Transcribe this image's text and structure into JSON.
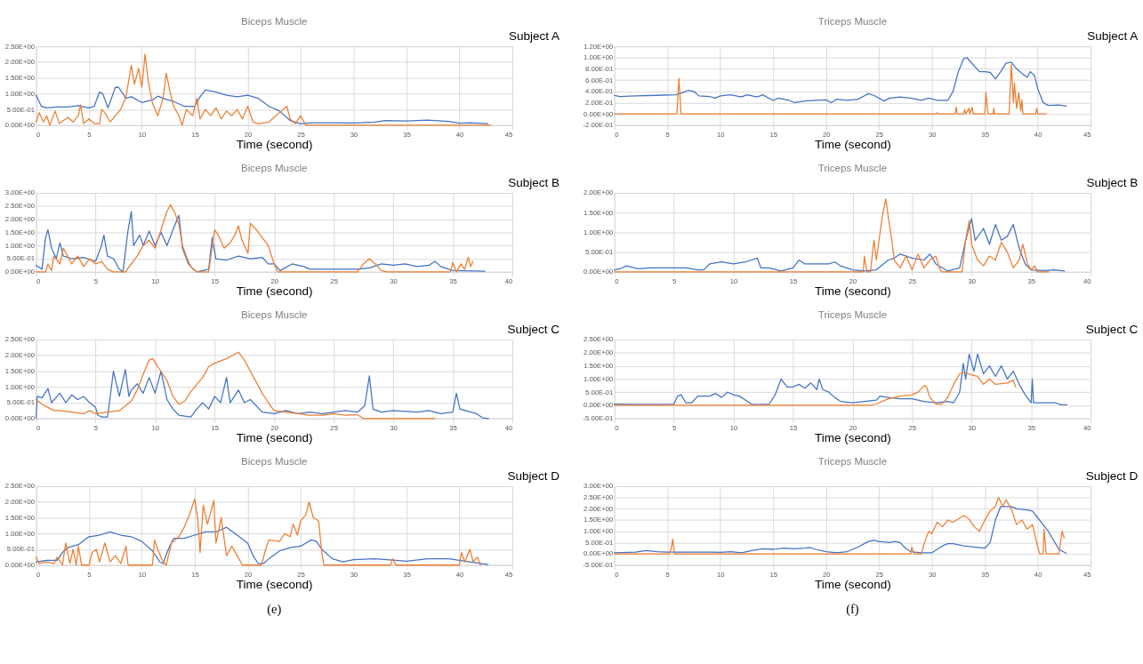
{
  "chart_data": [
    {
      "type": "line",
      "title": "Biceps Muscle",
      "xlabel": "Time (second)",
      "annotations": [
        "Subject A"
      ],
      "grid": true,
      "legend": false,
      "xlim": [
        0,
        45
      ],
      "xticks": [
        0,
        5,
        10,
        15,
        20,
        25,
        30,
        35,
        40,
        45
      ],
      "ylim": [
        0,
        2.5
      ],
      "yticks": [
        {
          "value": 0,
          "label": "0.00E+00"
        },
        {
          "value": 0.5,
          "label": "5.00E-01"
        },
        {
          "value": 1,
          "label": "1.00E+00"
        },
        {
          "value": 1.5,
          "label": "1.50E+00"
        },
        {
          "value": 2,
          "label": "2.00E+00"
        },
        {
          "value": 2.5,
          "label": "2.50E+00"
        }
      ],
      "series": [
        {
          "color": "#4472c4",
          "x": [
            0,
            0.5,
            1,
            2,
            3,
            4,
            5,
            5.5,
            6,
            6.3,
            6.8,
            7.5,
            7.8,
            8.5,
            9,
            10,
            11,
            11.5,
            12,
            13,
            14,
            15,
            15.5,
            16,
            17,
            18,
            19,
            20,
            21,
            22,
            23,
            24,
            25,
            26,
            28,
            30,
            32,
            33,
            35,
            37,
            39,
            40,
            41,
            42.7
          ],
          "values": [
            0.95,
            0.6,
            0.55,
            0.58,
            0.58,
            0.62,
            0.55,
            0.6,
            1.05,
            1.0,
            0.55,
            1.2,
            1.2,
            0.85,
            0.9,
            0.72,
            0.8,
            0.92,
            0.85,
            0.75,
            0.6,
            0.6,
            0.9,
            1.12,
            1.05,
            0.95,
            0.9,
            0.95,
            0.85,
            0.6,
            0.45,
            0.15,
            0.05,
            0.08,
            0.08,
            0.07,
            0.1,
            0.15,
            0.13,
            0.16,
            0.12,
            0.06,
            0.08,
            0.05
          ]
        },
        {
          "color": "#ed7d31",
          "x": [
            0,
            0.3,
            0.7,
            1,
            1.3,
            1.8,
            2.2,
            3,
            3.5,
            4,
            4.2,
            4.5,
            5,
            5.5,
            6,
            6.2,
            6.5,
            7,
            7.5,
            8,
            8.5,
            9,
            9.3,
            9.7,
            10,
            10.3,
            10.6,
            11,
            11.5,
            12,
            12.3,
            12.7,
            13,
            13.5,
            13.8,
            14.2,
            14.8,
            15.2,
            15.5,
            16,
            16.5,
            17,
            17.5,
            18,
            18.5,
            19,
            19.5,
            20,
            20.5,
            21,
            22,
            23,
            23.7,
            24,
            24.5,
            25,
            25.5,
            30,
            43
          ],
          "values": [
            0.1,
            0.4,
            0.1,
            0.3,
            0,
            0.45,
            0.05,
            0.25,
            0.1,
            0.3,
            0.65,
            0.05,
            0.2,
            0.05,
            0.05,
            0.5,
            0.4,
            0.1,
            0.3,
            0.5,
            0.9,
            1.9,
            1.3,
            1.8,
            1.2,
            2.25,
            1.4,
            0.7,
            0.3,
            0.85,
            1.65,
            1.0,
            0.6,
            0.3,
            0,
            0.5,
            0.3,
            0.85,
            0.2,
            0.5,
            0.3,
            0.55,
            0.2,
            0.45,
            0.3,
            0.5,
            0.2,
            0.6,
            0.1,
            0.05,
            0.1,
            0.4,
            0.6,
            0.2,
            0.05,
            0.3,
            0,
            0,
            0
          ]
        }
      ]
    },
    {
      "type": "line",
      "title": "Biceps Muscle",
      "xlabel": "Time (second)",
      "annotations": [
        "Subject B"
      ],
      "grid": true,
      "legend": false,
      "xlim": [
        0,
        40
      ],
      "xticks": [
        0,
        5,
        10,
        15,
        20,
        25,
        30,
        35,
        40
      ],
      "ylim": [
        0,
        3
      ],
      "yticks": [
        {
          "value": 0,
          "label": "0.00E+00"
        },
        {
          "value": 0.5,
          "label": "5.00E-01"
        },
        {
          "value": 1,
          "label": "1.00E+00"
        },
        {
          "value": 1.5,
          "label": "1.50E+00"
        },
        {
          "value": 2,
          "label": "2.00E+00"
        },
        {
          "value": 2.5,
          "label": "2.50E+00"
        },
        {
          "value": 3,
          "label": "3.00E+00"
        }
      ],
      "series": [
        {
          "color": "#4472c4",
          "x": [
            0,
            0.5,
            0.8,
            1,
            1.3,
            1.7,
            2,
            2.3,
            3,
            4,
            5,
            5.5,
            5.7,
            6,
            6.5,
            7,
            7.3,
            7.7,
            8,
            8.2,
            8.7,
            9,
            9.5,
            10,
            10.5,
            11,
            11.5,
            12,
            12.3,
            12.8,
            13.2,
            13.5,
            14.5,
            14.8,
            15.1,
            16,
            17,
            18,
            19,
            19.5,
            20,
            20.5,
            21.5,
            22.5,
            23,
            25,
            27,
            28,
            29,
            30,
            31,
            32,
            33,
            33.5,
            34,
            35,
            37.7
          ],
          "values": [
            0.25,
            0.1,
            1.3,
            1.6,
            0.9,
            0.5,
            1.1,
            0.6,
            0.5,
            0.55,
            0.4,
            1.0,
            1.4,
            0.6,
            0.5,
            0.1,
            0,
            1.5,
            2.3,
            1.0,
            1.4,
            1.0,
            1.55,
            1.0,
            1.5,
            1.0,
            1.6,
            2.15,
            0.9,
            0.3,
            0.1,
            0,
            0.1,
            1.3,
            0.5,
            0.45,
            0.6,
            0.5,
            0.55,
            0.3,
            0.3,
            0.05,
            0.3,
            0.2,
            0.1,
            0.1,
            0.1,
            0.15,
            0.3,
            0.25,
            0.3,
            0.2,
            0.25,
            0.4,
            0.2,
            0.05,
            0.02
          ]
        },
        {
          "color": "#ed7d31",
          "x": [
            0,
            0.8,
            1,
            1.3,
            1.5,
            2,
            2.3,
            3,
            3.5,
            4,
            4.5,
            5,
            5.5,
            6,
            6.5,
            7.5,
            8,
            8.5,
            9,
            9.5,
            10,
            10.5,
            11,
            11.3,
            11.7,
            12,
            12.3,
            12.7,
            13,
            13.5,
            14.5,
            15,
            15.3,
            15.8,
            16.3,
            16.7,
            17,
            17.3,
            17.8,
            18,
            18.5,
            19,
            19.5,
            20,
            20.3,
            27,
            27.5,
            28,
            28.5,
            29,
            29.5,
            34.8,
            35,
            35.3,
            35.7,
            36,
            36.3,
            36.5,
            36.7
          ],
          "values": [
            0,
            0,
            0.3,
            0.05,
            0.6,
            0.3,
            0.9,
            0.3,
            0.6,
            0.2,
            0.5,
            0.3,
            0.4,
            0.1,
            0,
            0,
            0.3,
            0.6,
            1.0,
            1.2,
            0.9,
            1.6,
            2.3,
            2.55,
            2.2,
            1.8,
            1.0,
            0.5,
            0.2,
            0,
            0,
            1.6,
            1.4,
            0.9,
            1.1,
            1.4,
            1.75,
            1.2,
            0.7,
            1.85,
            1.6,
            1.3,
            1.0,
            0.3,
            0,
            0,
            0.3,
            0.5,
            0.3,
            0.05,
            0,
            0,
            0.35,
            0,
            0.3,
            0.1,
            0.55,
            0.2,
            0.4
          ]
        }
      ]
    },
    {
      "type": "line",
      "title": "Biceps Muscle",
      "xlabel": "Time (second)",
      "annotations": [
        "Subject C"
      ],
      "grid": true,
      "legend": false,
      "xlim": [
        0,
        40
      ],
      "xticks": [
        0,
        5,
        10,
        15,
        20,
        25,
        30,
        35,
        40
      ],
      "ylim": [
        0,
        2.5
      ],
      "yticks": [
        {
          "value": 0,
          "label": "0.00E+00"
        },
        {
          "value": 0.5,
          "label": "5.00E-01"
        },
        {
          "value": 1,
          "label": "1.00E+00"
        },
        {
          "value": 1.5,
          "label": "1.50E+00"
        },
        {
          "value": 2,
          "label": "2.00E+00"
        },
        {
          "value": 2.5,
          "label": "2.50E+00"
        }
      ],
      "series": [
        {
          "color": "#4472c4",
          "x": [
            0,
            0.1,
            0.5,
            1,
            1.3,
            2,
            2.5,
            3,
            3.5,
            4,
            4.5,
            5,
            5.2,
            5.5,
            6,
            6.2,
            6.5,
            7,
            7.5,
            7.8,
            8,
            8.5,
            9,
            9.5,
            10,
            10.5,
            11,
            11.5,
            12,
            13,
            13.5,
            14,
            14.5,
            15,
            15.5,
            16,
            16.3,
            17,
            17.5,
            18,
            19,
            20,
            21,
            22,
            23,
            24,
            25,
            26,
            27,
            27.6,
            28,
            28.3,
            29,
            30,
            32,
            33,
            34,
            35,
            35.3,
            35.6,
            37,
            37.5,
            38
          ],
          "values": [
            0,
            0.7,
            0.65,
            0.95,
            0.5,
            0.8,
            0.5,
            0.75,
            0.6,
            0.7,
            0.5,
            0.35,
            0.1,
            0.05,
            0.05,
            0.6,
            1.5,
            0.7,
            1.55,
            0.7,
            0.9,
            1.1,
            0.8,
            1.3,
            0.8,
            1.5,
            0.6,
            0.3,
            0.1,
            0.05,
            0.3,
            0.5,
            0.3,
            0.7,
            0.5,
            1.3,
            0.5,
            0.9,
            0.5,
            0.6,
            0.2,
            0.15,
            0.25,
            0.15,
            0.2,
            0.15,
            0.2,
            0.25,
            0.2,
            0.4,
            1.35,
            0.3,
            0.2,
            0.25,
            0.2,
            0.25,
            0.15,
            0.2,
            0.8,
            0.3,
            0.15,
            0.02,
            0
          ]
        },
        {
          "color": "#ed7d31",
          "x": [
            0,
            0.5,
            1,
            1.5,
            2,
            3,
            4,
            4.5,
            5,
            6,
            7,
            8,
            8.5,
            9,
            9.5,
            9.8,
            10.3,
            11,
            11.5,
            12,
            12.5,
            13,
            14,
            14.5,
            15,
            16,
            16.5,
            17,
            17.5,
            18,
            19,
            19.5,
            20,
            21,
            22,
            23,
            24,
            25,
            26,
            27,
            27.5,
            33.5
          ],
          "values": [
            0.6,
            0.45,
            0.35,
            0.25,
            0.25,
            0.2,
            0.15,
            0.25,
            0.15,
            0.2,
            0.25,
            0.55,
            0.9,
            1.4,
            1.85,
            1.9,
            1.6,
            1.2,
            0.7,
            0.45,
            0.55,
            0.85,
            1.3,
            1.65,
            1.75,
            1.9,
            2.0,
            2.1,
            1.85,
            1.5,
            0.8,
            0.5,
            0.25,
            0.2,
            0.15,
            0.1,
            0.1,
            0.15,
            0.1,
            0.12,
            0,
            0
          ]
        }
      ]
    },
    {
      "type": "line",
      "title": "Biceps Muscle",
      "xlabel": "Time (second)",
      "annotations": [
        "Subject D",
        "(e)"
      ],
      "grid": true,
      "legend": false,
      "xlim": [
        0,
        45
      ],
      "xticks": [
        0,
        5,
        10,
        15,
        20,
        25,
        30,
        35,
        40,
        45
      ],
      "ylim": [
        0,
        2.5
      ],
      "yticks": [
        {
          "value": 0,
          "label": "0.00E+00"
        },
        {
          "value": 0.5,
          "label": "5.00E-01"
        },
        {
          "value": 1,
          "label": "1.00E+00"
        },
        {
          "value": 1.5,
          "label": "1.50E+00"
        },
        {
          "value": 2,
          "label": "2.00E+00"
        },
        {
          "value": 2.5,
          "label": "2.50E+00"
        }
      ],
      "series": [
        {
          "color": "#4472c4",
          "x": [
            0,
            1,
            2,
            2.5,
            3,
            4,
            5,
            6,
            7,
            8,
            9,
            10,
            11,
            11.7,
            12,
            12.5,
            13,
            14,
            15,
            16,
            17,
            18,
            19,
            20,
            20.5,
            21,
            21.5,
            22,
            23,
            24,
            25,
            26,
            26.5,
            27,
            28,
            29,
            30,
            32,
            34,
            35,
            37,
            39,
            40,
            41,
            42.7
          ],
          "values": [
            0.1,
            0.15,
            0.15,
            0.4,
            0.55,
            0.65,
            0.9,
            0.95,
            1.05,
            0.95,
            0.9,
            0.75,
            0.45,
            0.1,
            0.05,
            0.5,
            0.85,
            0.85,
            0.95,
            1.05,
            1.05,
            1.2,
            0.95,
            0.7,
            0.3,
            0.05,
            0.05,
            0.2,
            0.45,
            0.55,
            0.6,
            0.8,
            0.75,
            0.5,
            0.2,
            0.1,
            0.17,
            0.2,
            0.15,
            0.12,
            0.2,
            0.2,
            0.15,
            0.1,
            0.02
          ]
        },
        {
          "color": "#ed7d31",
          "x": [
            0,
            0.3,
            1,
            1.7,
            2,
            2.5,
            2.8,
            3.2,
            3.5,
            3.8,
            4,
            4.3,
            5,
            5.3,
            5.7,
            6,
            6.5,
            7,
            7.5,
            8,
            8.5,
            8.7,
            11,
            11.2,
            11.5,
            12,
            12.3,
            12.8,
            13.5,
            14,
            14.5,
            15,
            15.3,
            15.5,
            15.8,
            16.2,
            16.8,
            17,
            17.5,
            18,
            18.5,
            19,
            19.5,
            21.3,
            21.7,
            22,
            23,
            23.5,
            24,
            24.3,
            24.7,
            25,
            25.5,
            25.8,
            26.2,
            26.7,
            27,
            27.2,
            33.5,
            33.7,
            34,
            40,
            40.2,
            40.5,
            41,
            41.3,
            41.7,
            42
          ],
          "values": [
            0.25,
            0.05,
            0.1,
            0.05,
            0.25,
            0,
            0.7,
            0.05,
            0.5,
            0,
            0.6,
            0,
            0,
            0.4,
            0.5,
            0.1,
            0.7,
            0.1,
            0.3,
            0.05,
            0.6,
            0,
            0,
            0.8,
            0.5,
            0.1,
            0,
            0.7,
            0.9,
            1.2,
            1.6,
            2.1,
            1.4,
            0.4,
            1.9,
            1.3,
            2.05,
            0.7,
            1.5,
            0.3,
            0.6,
            0.3,
            0,
            0,
            0.5,
            0.8,
            0.75,
            1.0,
            0.9,
            1.3,
            0.95,
            1.4,
            1.6,
            2.0,
            1.5,
            1.4,
            0.4,
            0,
            0,
            0.2,
            0,
            0,
            0.4,
            0.1,
            0.5,
            0.1,
            0.25,
            0
          ]
        }
      ]
    },
    {
      "type": "line",
      "title": "Triceps Muscle",
      "xlabel": "Time (second)",
      "annotations": [
        "Subject A"
      ],
      "grid": true,
      "legend": false,
      "xlim": [
        0,
        45
      ],
      "xticks": [
        0,
        5,
        10,
        15,
        20,
        25,
        30,
        35,
        40,
        45
      ],
      "ylim": [
        -0.2,
        1.2
      ],
      "yticks": [
        {
          "value": -0.2,
          "label": "-2.00E-01"
        },
        {
          "value": 0,
          "label": "0.00E+00"
        },
        {
          "value": 0.2,
          "label": "2.00E-01"
        },
        {
          "value": 0.4,
          "label": "4.00E-01"
        },
        {
          "value": 0.6,
          "label": "6.00E-01"
        },
        {
          "value": 0.8,
          "label": "8.00E-01"
        },
        {
          "value": 1,
          "label": "1.00E+00"
        },
        {
          "value": 1.2,
          "label": "1.20E+00"
        }
      ],
      "series": [
        {
          "color": "#4472c4",
          "x": [
            0,
            0.5,
            2,
            4,
            5.8,
            6.5,
            7,
            7.5,
            8,
            9,
            9.5,
            10,
            11,
            12,
            12.5,
            13.5,
            14,
            15,
            15.5,
            16.5,
            17,
            18,
            19,
            20,
            20.5,
            21,
            22,
            23,
            24,
            24.5,
            25.5,
            26,
            27,
            28,
            29,
            29.7,
            30.5,
            31.5,
            32,
            32.5,
            33,
            33.3,
            34,
            34.5,
            35,
            35.5,
            36,
            36.5,
            37,
            37.5,
            38,
            38.5,
            39,
            39.3,
            39.7,
            40,
            40.5,
            41,
            42,
            42.7
          ],
          "values": [
            0.33,
            0.31,
            0.32,
            0.33,
            0.34,
            0.38,
            0.42,
            0.4,
            0.32,
            0.31,
            0.28,
            0.32,
            0.34,
            0.3,
            0.34,
            0.3,
            0.34,
            0.24,
            0.28,
            0.24,
            0.2,
            0.23,
            0.24,
            0.25,
            0.2,
            0.26,
            0.24,
            0.26,
            0.36,
            0.33,
            0.23,
            0.28,
            0.3,
            0.28,
            0.24,
            0.28,
            0.24,
            0.24,
            0.4,
            0.75,
            0.98,
            1.0,
            0.85,
            0.75,
            0.75,
            0.74,
            0.62,
            0.75,
            0.9,
            0.92,
            0.8,
            0.72,
            0.65,
            0.75,
            0.68,
            0.45,
            0.2,
            0.15,
            0.16,
            0.14
          ]
        },
        {
          "color": "#ed7d31",
          "x": [
            0,
            5.9,
            6.1,
            6.3,
            30.4,
            30.5,
            30.6,
            32.2,
            32.3,
            32.4,
            33,
            33.1,
            33.2,
            33.5,
            33.6,
            33.8,
            33.9,
            35,
            35.1,
            35.3,
            35.8,
            35.85,
            35.9,
            37.3,
            37.5,
            37.7,
            37.8,
            38,
            38.2,
            38.4,
            38.5,
            38.6,
            39.8,
            39.9,
            40,
            40.8
          ],
          "values": [
            0,
            0,
            0.63,
            0,
            0,
            0.02,
            0,
            0,
            0.12,
            0,
            0,
            0.08,
            0,
            0.1,
            0,
            0.12,
            0,
            0,
            0.38,
            0,
            0,
            0.1,
            0,
            0,
            0.88,
            0.2,
            0.55,
            0.1,
            0.38,
            0.05,
            0.25,
            0,
            0,
            0.1,
            0,
            0
          ]
        }
      ]
    },
    {
      "type": "line",
      "title": "Triceps Muscle",
      "xlabel": "Time (second)",
      "annotations": [
        "Subject B"
      ],
      "grid": true,
      "legend": false,
      "xlim": [
        0,
        40
      ],
      "xticks": [
        0,
        5,
        10,
        15,
        20,
        25,
        30,
        35,
        40
      ],
      "ylim": [
        0,
        2
      ],
      "yticks": [
        {
          "value": 0,
          "label": "0.00E+00"
        },
        {
          "value": 0.5,
          "label": "5.00E-01"
        },
        {
          "value": 1,
          "label": "1.00E+00"
        },
        {
          "value": 1.5,
          "label": "1.50E+00"
        },
        {
          "value": 2,
          "label": "2.00E+00"
        }
      ],
      "series": [
        {
          "color": "#4472c4",
          "x": [
            0,
            0.5,
            1,
            2,
            3,
            5,
            6,
            7,
            7.5,
            8,
            9,
            10,
            11,
            12,
            12.3,
            13,
            14,
            15,
            15.5,
            16,
            17,
            18,
            18.5,
            19,
            20,
            21,
            22,
            23,
            23.5,
            24,
            25,
            26,
            26.5,
            27,
            28,
            29,
            29.5,
            30,
            30.3,
            31,
            31.5,
            32,
            32.5,
            33,
            33.5,
            34,
            34.5,
            35,
            36,
            37,
            37.8
          ],
          "values": [
            0.05,
            0.08,
            0.15,
            0.08,
            0.1,
            0.1,
            0.1,
            0.05,
            0.05,
            0.2,
            0.25,
            0.2,
            0.25,
            0.35,
            0.1,
            0.1,
            0.02,
            0.1,
            0.3,
            0.2,
            0.2,
            0.2,
            0.25,
            0.15,
            0.05,
            0.02,
            0.05,
            0.3,
            0.35,
            0.45,
            0.35,
            0.3,
            0.45,
            0.2,
            0.02,
            0.1,
            0.8,
            1.35,
            0.8,
            1.1,
            0.7,
            1.2,
            0.8,
            0.9,
            1.2,
            0.6,
            0.2,
            0.05,
            0.03,
            0.05,
            0.02
          ]
        },
        {
          "color": "#ed7d31",
          "x": [
            0,
            20.9,
            21,
            21.2,
            21.5,
            21.8,
            22,
            22.5,
            22.8,
            23,
            23.3,
            23.5,
            24,
            24.5,
            25,
            25.5,
            26,
            26.5,
            27,
            27.3,
            27.5,
            29.2,
            29.5,
            29.8,
            30,
            30.5,
            31,
            31.5,
            32,
            32.5,
            33,
            33.5,
            34,
            34.3,
            34.7,
            35,
            35.3,
            35.5,
            36.5
          ],
          "values": [
            0,
            0,
            0.4,
            0,
            0,
            0.8,
            0.3,
            1.4,
            1.85,
            1.4,
            0.8,
            0.3,
            0.1,
            0.4,
            0.05,
            0.45,
            0.1,
            0.3,
            0.4,
            0.1,
            0,
            0,
            0.8,
            1.3,
            0.7,
            0.3,
            0.15,
            0.4,
            0.3,
            0.75,
            0.5,
            0.1,
            0.3,
            0.7,
            0.2,
            0.05,
            0.15,
            0,
            0
          ]
        }
      ]
    },
    {
      "type": "line",
      "title": "Triceps Muscle",
      "xlabel": "Time (second)",
      "annotations": [
        "Subject C"
      ],
      "grid": true,
      "legend": false,
      "xlim": [
        0,
        40
      ],
      "xticks": [
        0,
        5,
        10,
        15,
        20,
        25,
        30,
        35,
        40
      ],
      "ylim": [
        -0.5,
        2.5
      ],
      "yticks": [
        {
          "value": -0.5,
          "label": "-5.00E-01"
        },
        {
          "value": 0,
          "label": "0.00E+00"
        },
        {
          "value": 0.5,
          "label": "5.00E-01"
        },
        {
          "value": 1,
          "label": "1.00E+00"
        },
        {
          "value": 1.5,
          "label": "1.50E+00"
        },
        {
          "value": 2,
          "label": "2.00E+00"
        },
        {
          "value": 2.5,
          "label": "2.50E+00"
        }
      ],
      "series": [
        {
          "color": "#4472c4",
          "x": [
            0,
            2,
            5,
            5.3,
            5.6,
            6,
            6.5,
            7,
            8,
            8.5,
            9,
            9.5,
            10,
            10.5,
            11,
            11.5,
            12,
            13,
            13.5,
            14,
            14.5,
            15,
            15.5,
            16,
            16.5,
            17,
            17.2,
            17.5,
            18,
            18.5,
            19,
            20,
            21,
            22,
            22.3,
            23,
            24,
            25,
            26,
            27,
            28,
            28.5,
            29,
            29.3,
            29.5,
            29.8,
            30.2,
            30.5,
            31,
            31.5,
            32,
            32.5,
            33,
            33.5,
            34,
            34.5,
            35,
            35.1,
            35.2,
            36,
            37,
            37.5,
            38
          ],
          "values": [
            0.05,
            0.04,
            0.05,
            0.35,
            0.4,
            0.1,
            0.1,
            0.35,
            0.35,
            0.45,
            0.3,
            0.5,
            0.4,
            0.35,
            0.2,
            0.05,
            0.03,
            0.05,
            0.4,
            1.0,
            0.7,
            0.7,
            0.8,
            0.65,
            0.85,
            0.6,
            1.0,
            0.6,
            0.5,
            0.3,
            0.15,
            0.1,
            0.15,
            0.2,
            0.35,
            0.3,
            0.25,
            0.25,
            0.15,
            0.1,
            0.15,
            0.1,
            0.5,
            1.6,
            1.0,
            1.95,
            1.3,
            1.95,
            1.2,
            1.5,
            1.1,
            1.5,
            1.0,
            1.3,
            0.8,
            0.4,
            0.1,
            1.0,
            0.1,
            0.1,
            0.1,
            0.02,
            0.02
          ]
        },
        {
          "color": "#ed7d31",
          "x": [
            0,
            21.5,
            22,
            23,
            24,
            25,
            25.5,
            26,
            26.2,
            26.5,
            27,
            27.5,
            28,
            28.5,
            29,
            29.5,
            30,
            30.5,
            31,
            31.5,
            32,
            33,
            33.5,
            33.7
          ],
          "values": [
            0,
            0,
            0.05,
            0.25,
            0.35,
            0.4,
            0.5,
            0.75,
            0.72,
            0.3,
            0.05,
            0.05,
            0.3,
            0.8,
            1.2,
            1.25,
            1.15,
            1.1,
            0.8,
            1.0,
            0.8,
            0.85,
            0.95,
            0.7
          ]
        }
      ]
    },
    {
      "type": "line",
      "title": "Triceps Muscle",
      "xlabel": "Time (second)",
      "annotations": [
        "Subject D",
        "(f)"
      ],
      "grid": true,
      "legend": false,
      "xlim": [
        0,
        45
      ],
      "xticks": [
        0,
        5,
        10,
        15,
        20,
        25,
        30,
        35,
        40,
        45
      ],
      "ylim": [
        -0.5,
        3
      ],
      "yticks": [
        {
          "value": -0.5,
          "label": "-5.00E-01"
        },
        {
          "value": 0,
          "label": "0.00E+00"
        },
        {
          "value": 0.5,
          "label": "5.00E-01"
        },
        {
          "value": 1,
          "label": "1.00E+00"
        },
        {
          "value": 1.5,
          "label": "1.50E+00"
        },
        {
          "value": 2,
          "label": "2.00E+00"
        },
        {
          "value": 2.5,
          "label": "2.50E+00"
        },
        {
          "value": 3,
          "label": "3.00E+00"
        }
      ],
      "series": [
        {
          "color": "#4472c4",
          "x": [
            0,
            2,
            3,
            4,
            5,
            7,
            9,
            10,
            11,
            12,
            13,
            14,
            15,
            16,
            17,
            18,
            18.5,
            19,
            20,
            21,
            22,
            23,
            24,
            24.5,
            25,
            26,
            26.5,
            27,
            27.5,
            28,
            29,
            30,
            31,
            31.5,
            32,
            33,
            34,
            35,
            35.5,
            36,
            36.5,
            37,
            37.5,
            38,
            39,
            39.5,
            40,
            40.5,
            41,
            41.5,
            42,
            42.7
          ],
          "values": [
            0.05,
            0.08,
            0.15,
            0.1,
            0.08,
            0.08,
            0.08,
            0.07,
            0.1,
            0.05,
            0.15,
            0.22,
            0.2,
            0.25,
            0.22,
            0.25,
            0.28,
            0.2,
            0.1,
            0.05,
            0.1,
            0.3,
            0.55,
            0.6,
            0.55,
            0.5,
            0.55,
            0.5,
            0.25,
            0.1,
            0.05,
            0.05,
            0.35,
            0.45,
            0.45,
            0.35,
            0.3,
            0.25,
            0.5,
            1.5,
            2.1,
            2.1,
            2.1,
            2.0,
            1.95,
            1.9,
            1.6,
            1.3,
            1.0,
            0.6,
            0.2,
            0.02
          ]
        },
        {
          "color": "#ed7d31",
          "x": [
            0,
            5.2,
            5.4,
            5.5,
            5.7,
            28,
            28.1,
            28.3,
            29,
            29.3,
            29.7,
            30,
            30.5,
            31,
            31.5,
            32,
            33,
            33.5,
            34,
            34.5,
            35,
            35.5,
            36,
            36.3,
            36.7,
            37,
            37.5,
            38,
            38.5,
            39,
            39.5,
            40,
            40.2,
            40.5,
            40.6,
            40.8,
            42,
            42.3,
            42.5
          ],
          "values": [
            0,
            0,
            0.3,
            0.65,
            0,
            0,
            0.3,
            0,
            0,
            0.5,
            1.0,
            0.9,
            1.4,
            1.2,
            1.5,
            1.4,
            1.7,
            1.55,
            1.2,
            1.0,
            1.5,
            1.9,
            2.1,
            2.5,
            2.1,
            2.4,
            2.0,
            1.3,
            1.5,
            1.1,
            1.3,
            0.3,
            0,
            0,
            1.1,
            0,
            0,
            1.0,
            0.7
          ]
        }
      ]
    }
  ]
}
